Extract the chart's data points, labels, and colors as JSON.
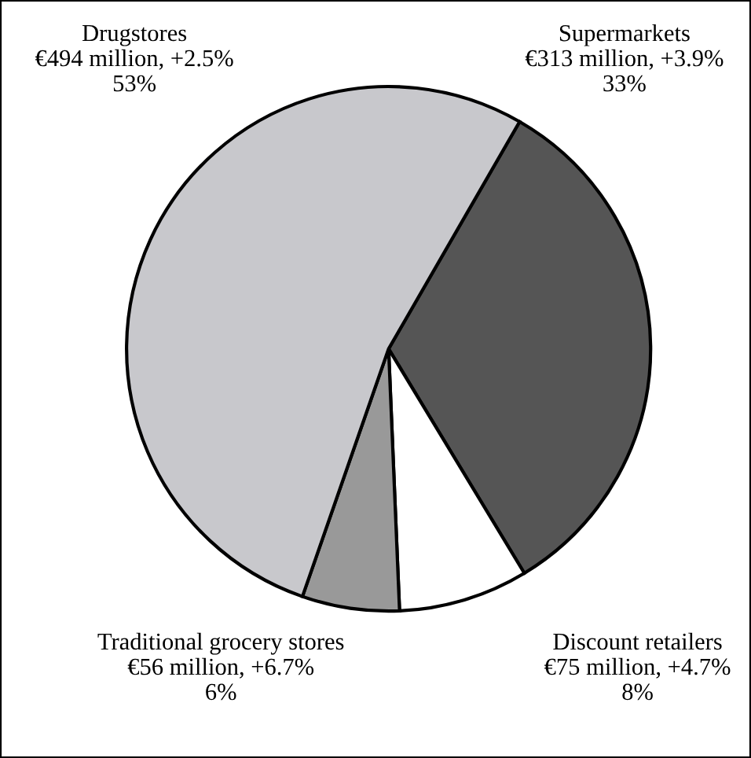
{
  "chart_data": {
    "type": "pie",
    "categories": [
      "Supermarkets",
      "Discount retailers",
      "Traditional grocery stores",
      "Drugstores"
    ],
    "values": [
      33,
      8,
      6,
      53
    ],
    "value_labels": [
      "€313 million, +3.9%\n33%",
      "€75 million, +4.7%\n8%",
      "€56 million, +6.7%\n6%",
      "€494 million, +2.5%\n53%"
    ],
    "colors": [
      "#555555",
      "#ffffff",
      "#999999",
      "#c8c8cc"
    ]
  }
}
